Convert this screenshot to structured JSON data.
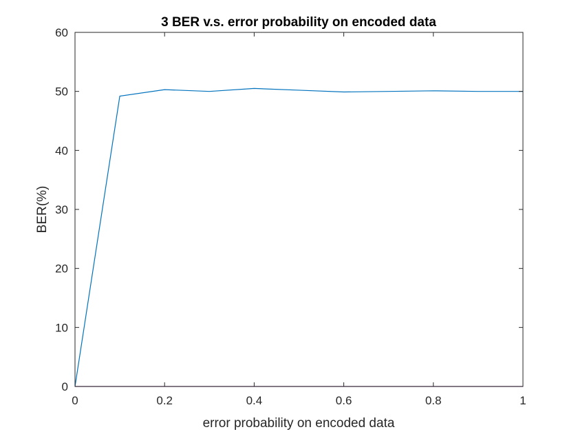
{
  "chart_data": {
    "type": "line",
    "title": "3 BER v.s. error probability on encoded data",
    "xlabel": "error probability on encoded data",
    "ylabel": "BER(%)",
    "xlim": [
      0,
      1
    ],
    "ylim": [
      0,
      60
    ],
    "xticks": [
      "0",
      "0.2",
      "0.4",
      "0.6",
      "0.8",
      "1"
    ],
    "yticks": [
      "0",
      "10",
      "20",
      "30",
      "40",
      "50",
      "60"
    ],
    "grid": false,
    "legend": "none",
    "series": [
      {
        "color": "#0072BD",
        "x": [
          0,
          0.1,
          0.2,
          0.3,
          0.4,
          0.5,
          0.6,
          0.7,
          0.8,
          0.9,
          1.0
        ],
        "y": [
          0,
          49.2,
          50.3,
          50.0,
          50.5,
          50.2,
          49.9,
          50.0,
          50.1,
          50.0,
          50.0
        ]
      },
      {
        "color": "#7E2F8E",
        "x": [
          0,
          0.1,
          0.2,
          0.3,
          0.4,
          0.5,
          0.6,
          0.7,
          0.8,
          0.9,
          1.0
        ],
        "y": [
          0,
          0,
          0,
          0,
          0,
          0,
          0,
          0,
          0,
          0,
          0
        ]
      }
    ]
  }
}
